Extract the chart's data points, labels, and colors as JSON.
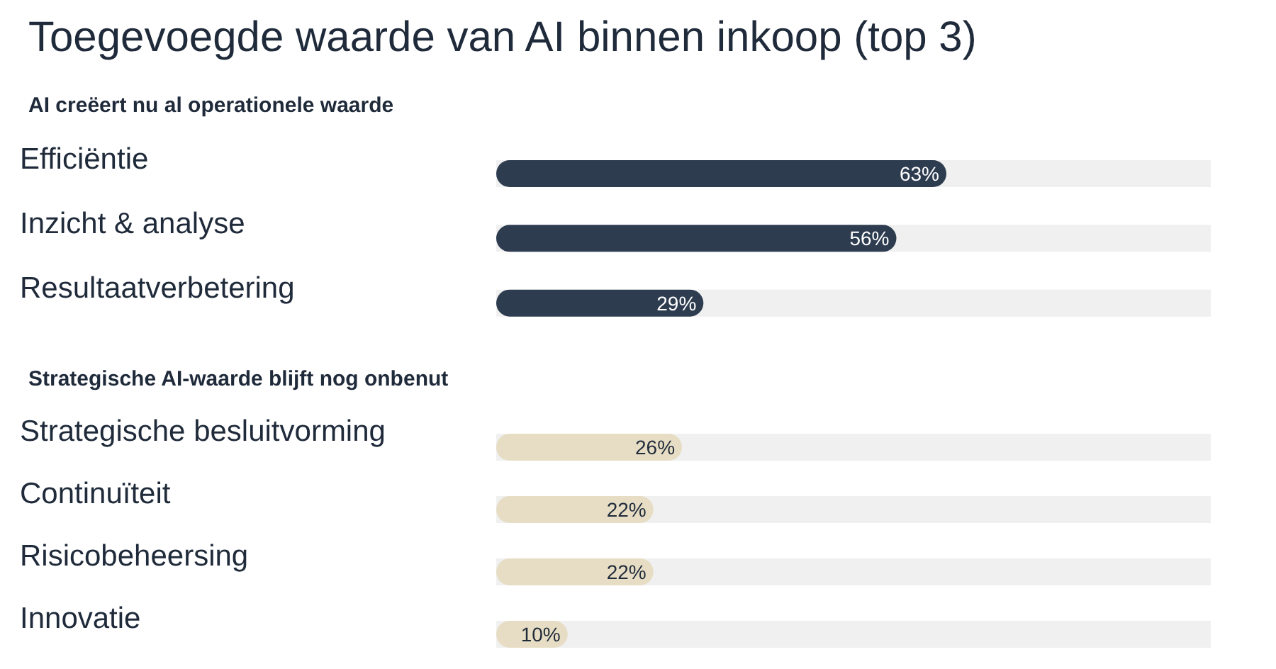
{
  "chart_data": [
    {
      "type": "bar",
      "orientation": "horizontal",
      "title": "Toegevoegde waarde van AI binnen inkoop (top 3)",
      "subtitle": "AI creëert nu al operationele waarde",
      "categories": [
        "Efficiëntie",
        "Inzicht & analyse",
        "Resultaatverbetering"
      ],
      "values": [
        63,
        56,
        29
      ],
      "value_labels": [
        "63%",
        "56%",
        "29%"
      ],
      "color": "#2e3c50",
      "xlim": [
        0,
        100
      ],
      "tick_labels": "y",
      "grid": false,
      "legend": false
    },
    {
      "type": "bar",
      "orientation": "horizontal",
      "subtitle": "Strategische AI-waarde blijft nog onbenut",
      "categories": [
        "Strategische besluitvorming",
        "Continuïteit",
        "Risicobeheersing",
        "Innovatie"
      ],
      "values": [
        26,
        22,
        22,
        10
      ],
      "value_labels": [
        "26%",
        "22%",
        "22%",
        "10%"
      ],
      "color": "#e6ddc4",
      "xlim": [
        0,
        100
      ],
      "tick_labels": "y",
      "grid": false,
      "legend": false
    }
  ]
}
